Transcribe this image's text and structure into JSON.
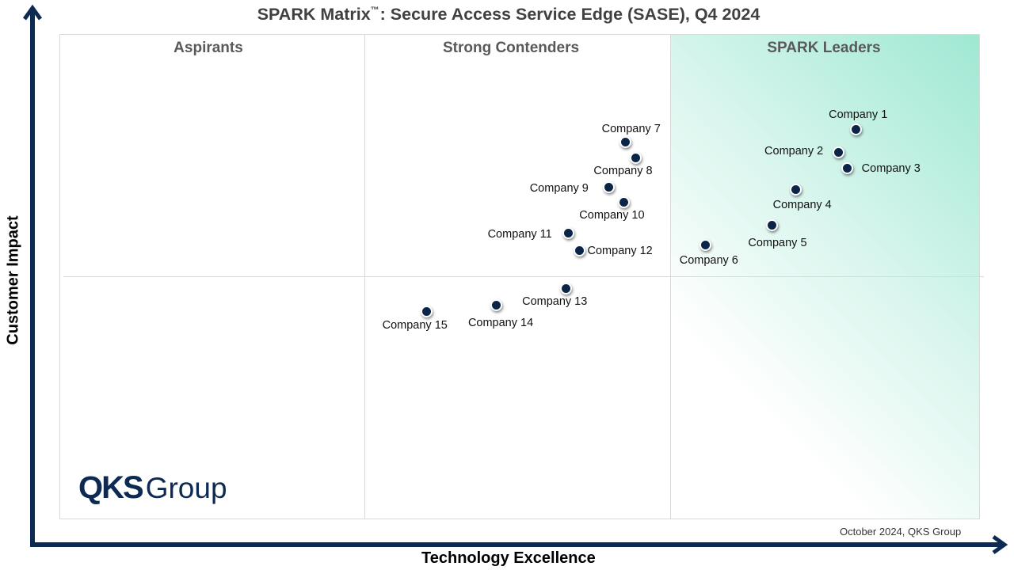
{
  "title": {
    "main": "SPARK Matrix",
    "tm": "™",
    "rest": ": Secure Access Service Edge (SASE), Q4 2024"
  },
  "colors": {
    "point": "#0a2548",
    "axis": "#0d2a52",
    "leaders_gradient": "#9fe8d3"
  },
  "quadrants": {
    "aspirants": "Aspirants",
    "contenders": "Strong Contenders",
    "leaders": "SPARK Leaders"
  },
  "footnote": "October 2024, QKS Group",
  "logo": {
    "bold": "QKS",
    "light": "Group"
  },
  "chart_data": {
    "type": "scatter",
    "title": "SPARK Matrix™: Secure Access Service Edge (SASE), Q4 2024",
    "xlabel": "Technology Excellence",
    "ylabel": "Customer Impact",
    "xlim": [
      0,
      100
    ],
    "ylim": [
      0,
      100
    ],
    "grid": false,
    "quadrant_lines": {
      "x": [
        33.3,
        66.7
      ],
      "y": 50
    },
    "points": [
      {
        "name": "Company 1",
        "x": 86.5,
        "y": 80.4
      },
      {
        "name": "Company 2",
        "x": 84.6,
        "y": 75.6
      },
      {
        "name": "Company 3",
        "x": 85.6,
        "y": 72.3
      },
      {
        "name": "Company 4",
        "x": 80.0,
        "y": 67.9
      },
      {
        "name": "Company 5",
        "x": 77.4,
        "y": 60.6
      },
      {
        "name": "Company 6",
        "x": 70.2,
        "y": 56.6
      },
      {
        "name": "Company 7",
        "x": 61.5,
        "y": 77.8
      },
      {
        "name": "Company 8",
        "x": 62.6,
        "y": 74.4
      },
      {
        "name": "Company 9",
        "x": 59.7,
        "y": 68.5
      },
      {
        "name": "Company 10",
        "x": 61.3,
        "y": 65.3
      },
      {
        "name": "Company 11",
        "x": 55.3,
        "y": 58.9
      },
      {
        "name": "Company 12",
        "x": 56.5,
        "y": 55.4
      },
      {
        "name": "Company 13",
        "x": 55.0,
        "y": 47.6
      },
      {
        "name": "Company 14",
        "x": 47.5,
        "y": 44.1
      },
      {
        "name": "Company 15",
        "x": 39.9,
        "y": 42.9
      }
    ]
  }
}
